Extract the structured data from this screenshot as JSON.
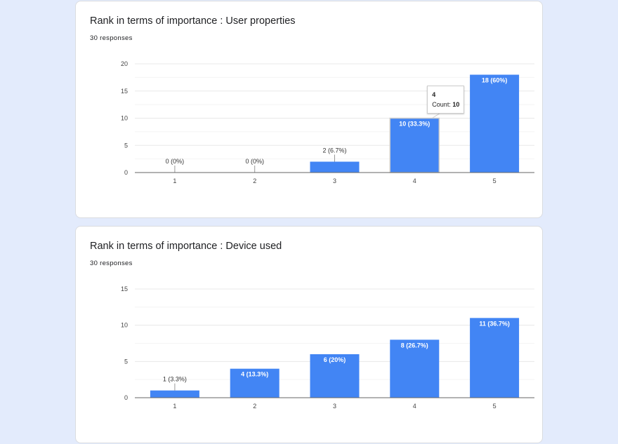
{
  "chart_data": [
    {
      "type": "bar",
      "title": "Rank in terms of importance : User properties",
      "subtitle": "30 responses",
      "categories": [
        "1",
        "2",
        "3",
        "4",
        "5"
      ],
      "values": [
        0,
        0,
        2,
        10,
        18
      ],
      "data_labels": [
        "0 (0%)",
        "0 (0%)",
        "2 (6.7%)",
        "10 (33.3%)",
        "18 (60%)"
      ],
      "ylim": [
        0,
        20
      ],
      "yticks": [
        0,
        5,
        10,
        15,
        20
      ],
      "grid": true,
      "color": "#4285f4",
      "tooltip": {
        "category": "4",
        "label": "Count:",
        "value": "10"
      }
    },
    {
      "type": "bar",
      "title": "Rank in terms of importance : Device used",
      "subtitle": "30 responses",
      "categories": [
        "1",
        "2",
        "3",
        "4",
        "5"
      ],
      "values": [
        1,
        4,
        6,
        8,
        11
      ],
      "data_labels": [
        "1 (3.3%)",
        "4 (13.3%)",
        "6 (20%)",
        "8 (26.7%)",
        "11 (36.7%)"
      ],
      "ylim": [
        0,
        15
      ],
      "yticks": [
        0,
        5,
        10,
        15
      ],
      "grid": true,
      "color": "#4285f4"
    }
  ]
}
